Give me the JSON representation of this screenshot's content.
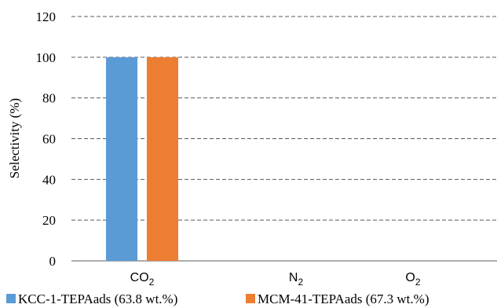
{
  "chart_data": {
    "type": "bar",
    "categories": [
      "CO2",
      "N2",
      "O2"
    ],
    "category_labels": [
      {
        "base": "CO",
        "sub": "2"
      },
      {
        "base": "N",
        "sub": "2"
      },
      {
        "base": "O",
        "sub": "2"
      }
    ],
    "series": [
      {
        "name": "KCC-1-TEPAads (63.8 wt.%)",
        "color": "#5b9bd5",
        "values": [
          100,
          0,
          0
        ]
      },
      {
        "name": "MCM-41-TEPAads (67.3 wt.%)",
        "color": "#ed7d31",
        "values": [
          100,
          0,
          0
        ]
      }
    ],
    "title": "",
    "xlabel": "",
    "ylabel": "Selectivity (%)",
    "ylim": [
      0,
      120
    ],
    "yticks": [
      0,
      20,
      40,
      60,
      80,
      100,
      120
    ],
    "grid": true,
    "legend_position": "bottom"
  }
}
